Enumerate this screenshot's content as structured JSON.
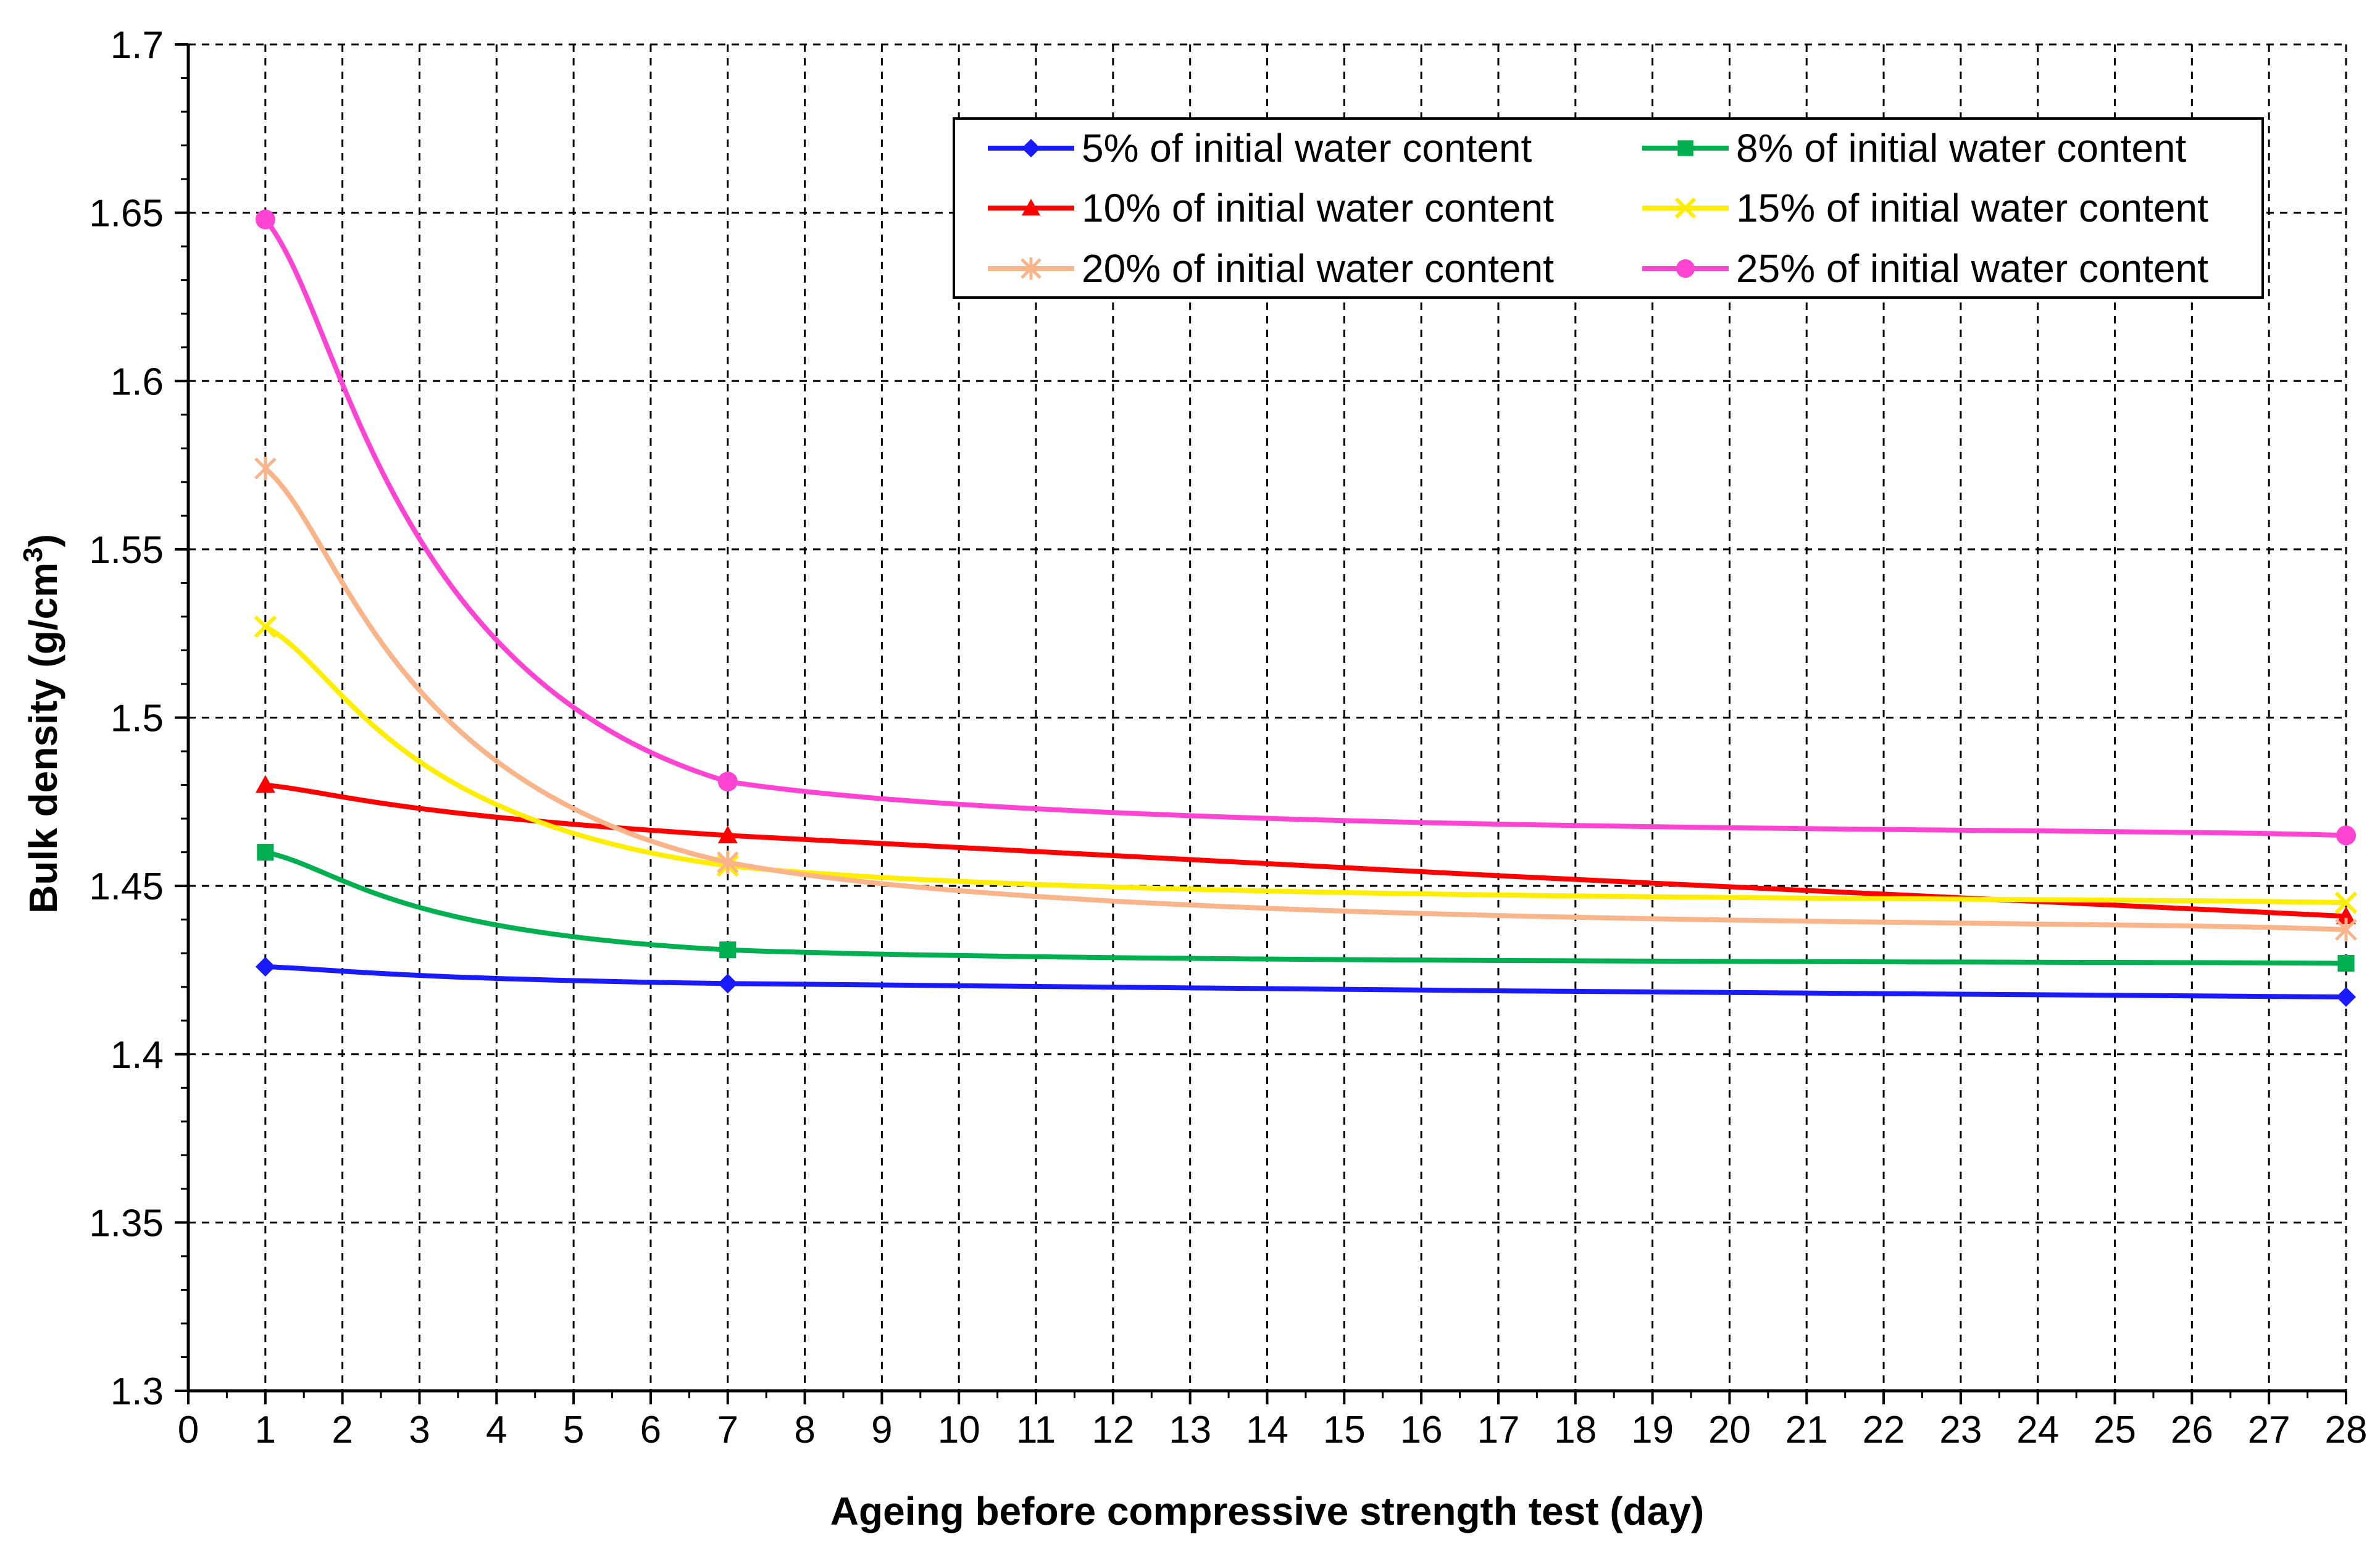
{
  "chart_data": {
    "type": "line",
    "xlabel": "Ageing before compressive strength test (day)",
    "ylabel_main": "Bulk density (g/cm",
    "ylabel_sup": "3",
    "ylabel_close": ")",
    "xlim": [
      0,
      28
    ],
    "ylim": [
      1.3,
      1.7
    ],
    "x_ticks": [
      0,
      1,
      2,
      3,
      4,
      5,
      6,
      7,
      8,
      9,
      10,
      11,
      12,
      13,
      14,
      15,
      16,
      17,
      18,
      19,
      20,
      21,
      22,
      23,
      24,
      25,
      26,
      27,
      28
    ],
    "x_tick_labels": [
      "0",
      "1",
      "2",
      "3",
      "4",
      "5",
      "6",
      "7",
      "8",
      "9",
      "10",
      "11",
      "12",
      "13",
      "14",
      "15",
      "16",
      "17",
      "18",
      "19",
      "20",
      "21",
      "22",
      "23",
      "24",
      "25",
      "26",
      "27",
      "28"
    ],
    "y_ticks": [
      1.3,
      1.35,
      1.4,
      1.45,
      1.5,
      1.55,
      1.6,
      1.65,
      1.7
    ],
    "y_tick_labels": [
      "1.3",
      "1.35",
      "1.4",
      "1.45",
      "1.5",
      "1.55",
      "1.6",
      "1.65",
      "1.7"
    ],
    "grid": true,
    "legend_position": "top-right",
    "x": [
      1,
      7,
      28
    ],
    "series": [
      {
        "name": "5% of initial water content",
        "values": [
          1.426,
          1.421,
          1.417
        ],
        "color": "#1a1aff",
        "marker": "diamond"
      },
      {
        "name": "8% of initial water content",
        "values": [
          1.46,
          1.431,
          1.427
        ],
        "color": "#00b050",
        "marker": "square"
      },
      {
        "name": "10% of initial water content",
        "values": [
          1.48,
          1.465,
          1.441
        ],
        "color": "#ff0000",
        "marker": "triangle"
      },
      {
        "name": "15% of initial water content",
        "values": [
          1.527,
          1.456,
          1.445
        ],
        "color": "#ffee00",
        "marker": "x"
      },
      {
        "name": "20% of initial water content",
        "values": [
          1.574,
          1.457,
          1.437
        ],
        "color": "#f9b48a",
        "marker": "star"
      },
      {
        "name": "25% of initial water content",
        "values": [
          1.648,
          1.481,
          1.465
        ],
        "color": "#ff44d4",
        "marker": "circle"
      }
    ],
    "legend_order": [
      0,
      1,
      2,
      3,
      4,
      5
    ]
  }
}
